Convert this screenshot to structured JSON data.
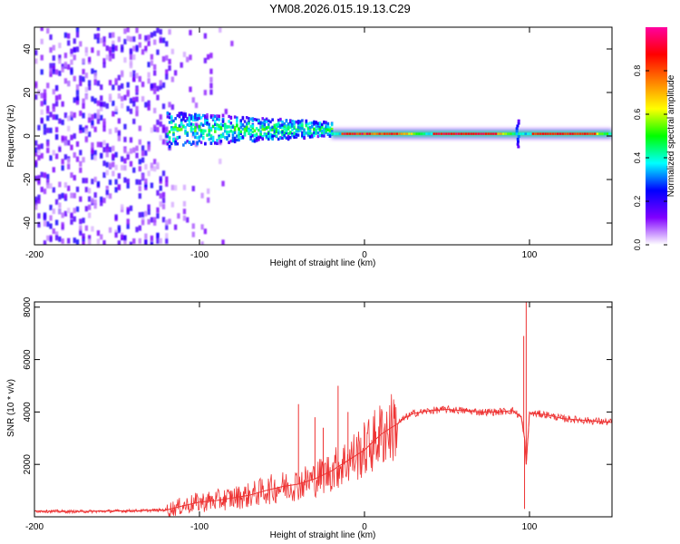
{
  "title": "YM08.2026.015.19.13.C29",
  "chart_data": [
    {
      "type": "heatmap",
      "xlabel": "Height of straight line (km)",
      "ylabel": "Frequency (Hz)",
      "xlim": [
        -200,
        150
      ],
      "ylim": [
        -50,
        50
      ],
      "xticks": [
        -200,
        -100,
        0,
        100
      ],
      "xtick_labels": [
        "-200",
        "-100",
        "0",
        "100"
      ],
      "yticks": [
        -40,
        -20,
        0,
        20,
        40
      ],
      "ytick_labels": [
        "-40",
        "-20",
        "0",
        "20",
        "40"
      ],
      "colorbar": {
        "label": "Normalized spectral amplitude",
        "range": [
          0,
          1
        ],
        "ticks": [
          0.0,
          0.2,
          0.4,
          0.6,
          0.8
        ],
        "tick_labels": [
          "0.0",
          "0.2",
          "0.4",
          "0.6",
          "0.8"
        ],
        "colors": [
          "#ffffff",
          "#8000ff",
          "#0000ff",
          "#00ffff",
          "#00ff00",
          "#ffff00",
          "#ff8000",
          "#ff0000",
          "#ff00a0"
        ]
      },
      "regions": [
        {
          "name": "noise",
          "x_range": [
            -200,
            -120
          ],
          "freq_spread": 50,
          "amplitude": 0.15
        },
        {
          "name": "transition",
          "x_range": [
            -120,
            -20
          ],
          "freq_spread": 8,
          "amplitude": 0.4
        },
        {
          "name": "ridge",
          "x_range": [
            -20,
            150
          ],
          "center_freq": 1,
          "amplitude": 0.9
        }
      ],
      "annotations": [
        {
          "x": 92,
          "note": "spectral spike near 92 km"
        }
      ]
    },
    {
      "type": "line",
      "xlabel": "Height of straight line (km)",
      "ylabel": "SNR (10 * v/v)",
      "xlim": [
        -200,
        150
      ],
      "ylim": [
        0,
        8200
      ],
      "xticks": [
        -200,
        -100,
        0,
        100
      ],
      "xtick_labels": [
        "-200",
        "-100",
        "0",
        "100"
      ],
      "yticks": [
        2000,
        4000,
        6000,
        8000
      ],
      "ytick_labels": [
        "2000",
        "4000",
        "6000",
        "8000"
      ],
      "color": "#ee3333",
      "series": [
        {
          "name": "SNR",
          "x": [
            -200,
            -180,
            -160,
            -140,
            -120,
            -110,
            -100,
            -90,
            -80,
            -70,
            -60,
            -50,
            -40,
            -30,
            -20,
            -15,
            -10,
            -5,
            0,
            5,
            10,
            20,
            25,
            30,
            40,
            50,
            60,
            70,
            80,
            90,
            95,
            97,
            98,
            100,
            110,
            120,
            130,
            140,
            150
          ],
          "values": [
            220,
            200,
            210,
            230,
            260,
            420,
            560,
            620,
            720,
            820,
            1000,
            1150,
            1250,
            1450,
            1750,
            1950,
            2150,
            2350,
            2550,
            2850,
            3150,
            3550,
            3800,
            3950,
            4050,
            4100,
            4050,
            4000,
            4000,
            4050,
            3800,
            3000,
            2000,
            3950,
            3900,
            3750,
            3700,
            3650,
            3600
          ]
        }
      ],
      "spikes": [
        {
          "x": -40,
          "y": 4300
        },
        {
          "x": -30,
          "y": 3800
        },
        {
          "x": -25,
          "y": 3400
        },
        {
          "x": -16,
          "y": 5000
        },
        {
          "x": -10,
          "y": 4000
        },
        {
          "x": 96.5,
          "y": 6900
        },
        {
          "x": 97,
          "y": 300
        },
        {
          "x": 98,
          "y": 8200
        }
      ]
    }
  ]
}
